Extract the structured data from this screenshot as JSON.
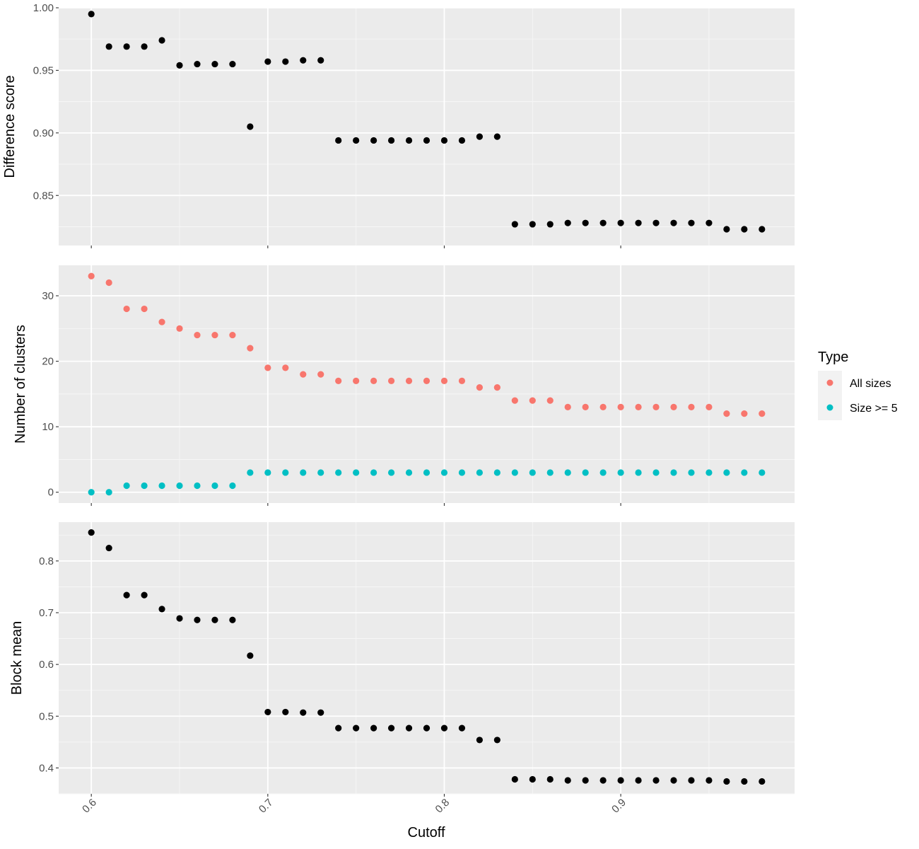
{
  "chart_data": {
    "type": "scatter",
    "xlabel": "Cutoff",
    "x_ticks": [
      0.6,
      0.7,
      0.8,
      0.9
    ],
    "x_tick_labels": [
      "0.6",
      "0.7",
      "0.8",
      "0.9"
    ],
    "xlim": [
      0.5815,
      0.9985
    ],
    "x": [
      0.6,
      0.61,
      0.62,
      0.63,
      0.64,
      0.65,
      0.66,
      0.67,
      0.68,
      0.69,
      0.7,
      0.71,
      0.72,
      0.73,
      0.74,
      0.75,
      0.76,
      0.77,
      0.78,
      0.79,
      0.8,
      0.81,
      0.82,
      0.83,
      0.84,
      0.85,
      0.86,
      0.87,
      0.88,
      0.89,
      0.9,
      0.91,
      0.92,
      0.93,
      0.94,
      0.95,
      0.96,
      0.97,
      0.98
    ],
    "grid": true,
    "background": "#ebebeb",
    "panels": [
      {
        "ylabel": "Difference score",
        "ylim": [
          0.81,
          1.0
        ],
        "y_ticks": [
          0.85,
          0.9,
          0.95,
          1.0
        ],
        "y_tick_labels": [
          "0.85",
          "0.90",
          "0.95",
          "1.00"
        ],
        "series": [
          {
            "color": "#000000",
            "values": [
              0.995,
              0.969,
              0.969,
              0.969,
              0.974,
              0.954,
              0.955,
              0.955,
              0.955,
              0.905,
              0.957,
              0.957,
              0.958,
              0.958,
              0.894,
              0.894,
              0.894,
              0.894,
              0.894,
              0.894,
              0.894,
              0.894,
              0.897,
              0.897,
              0.827,
              0.827,
              0.827,
              0.828,
              0.828,
              0.828,
              0.828,
              0.828,
              0.828,
              0.828,
              0.828,
              0.828,
              0.823,
              0.823,
              0.823
            ]
          }
        ]
      },
      {
        "ylabel": "Number of clusters",
        "ylim": [
          -1.65,
          34.65
        ],
        "y_ticks": [
          0,
          10,
          20,
          30
        ],
        "y_tick_labels": [
          "0",
          "10",
          "20",
          "30"
        ],
        "series": [
          {
            "name": "All sizes",
            "color": "#f8766d",
            "values": [
              33,
              32,
              28,
              28,
              26,
              25,
              24,
              24,
              24,
              22,
              19,
              19,
              18,
              18,
              17,
              17,
              17,
              17,
              17,
              17,
              17,
              17,
              16,
              16,
              14,
              14,
              14,
              13,
              13,
              13,
              13,
              13,
              13,
              13,
              13,
              13,
              12,
              12,
              12
            ]
          },
          {
            "name": "Size >= 5",
            "color": "#00bfc4",
            "values": [
              0,
              0,
              1,
              1,
              1,
              1,
              1,
              1,
              1,
              3,
              3,
              3,
              3,
              3,
              3,
              3,
              3,
              3,
              3,
              3,
              3,
              3,
              3,
              3,
              3,
              3,
              3,
              3,
              3,
              3,
              3,
              3,
              3,
              3,
              3,
              3,
              3,
              3,
              3
            ]
          }
        ]
      },
      {
        "ylabel": "Block mean",
        "ylim": [
          0.35,
          0.875
        ],
        "y_ticks": [
          0.4,
          0.5,
          0.6,
          0.7,
          0.8
        ],
        "y_tick_labels": [
          "0.4",
          "0.5",
          "0.6",
          "0.7",
          "0.8"
        ],
        "series": [
          {
            "color": "#000000",
            "values": [
              0.855,
              0.825,
              0.734,
              0.734,
              0.707,
              0.689,
              0.686,
              0.686,
              0.686,
              0.617,
              0.508,
              0.508,
              0.507,
              0.507,
              0.477,
              0.477,
              0.477,
              0.477,
              0.477,
              0.477,
              0.477,
              0.477,
              0.454,
              0.454,
              0.378,
              0.378,
              0.378,
              0.376,
              0.376,
              0.376,
              0.376,
              0.376,
              0.376,
              0.376,
              0.376,
              0.376,
              0.374,
              0.374,
              0.374
            ]
          }
        ]
      }
    ],
    "legend": {
      "title": "Type",
      "placement": "right",
      "entries": [
        {
          "label": "All sizes",
          "color": "#f8766d"
        },
        {
          "label": "Size >= 5",
          "color": "#00bfc4"
        }
      ]
    }
  }
}
